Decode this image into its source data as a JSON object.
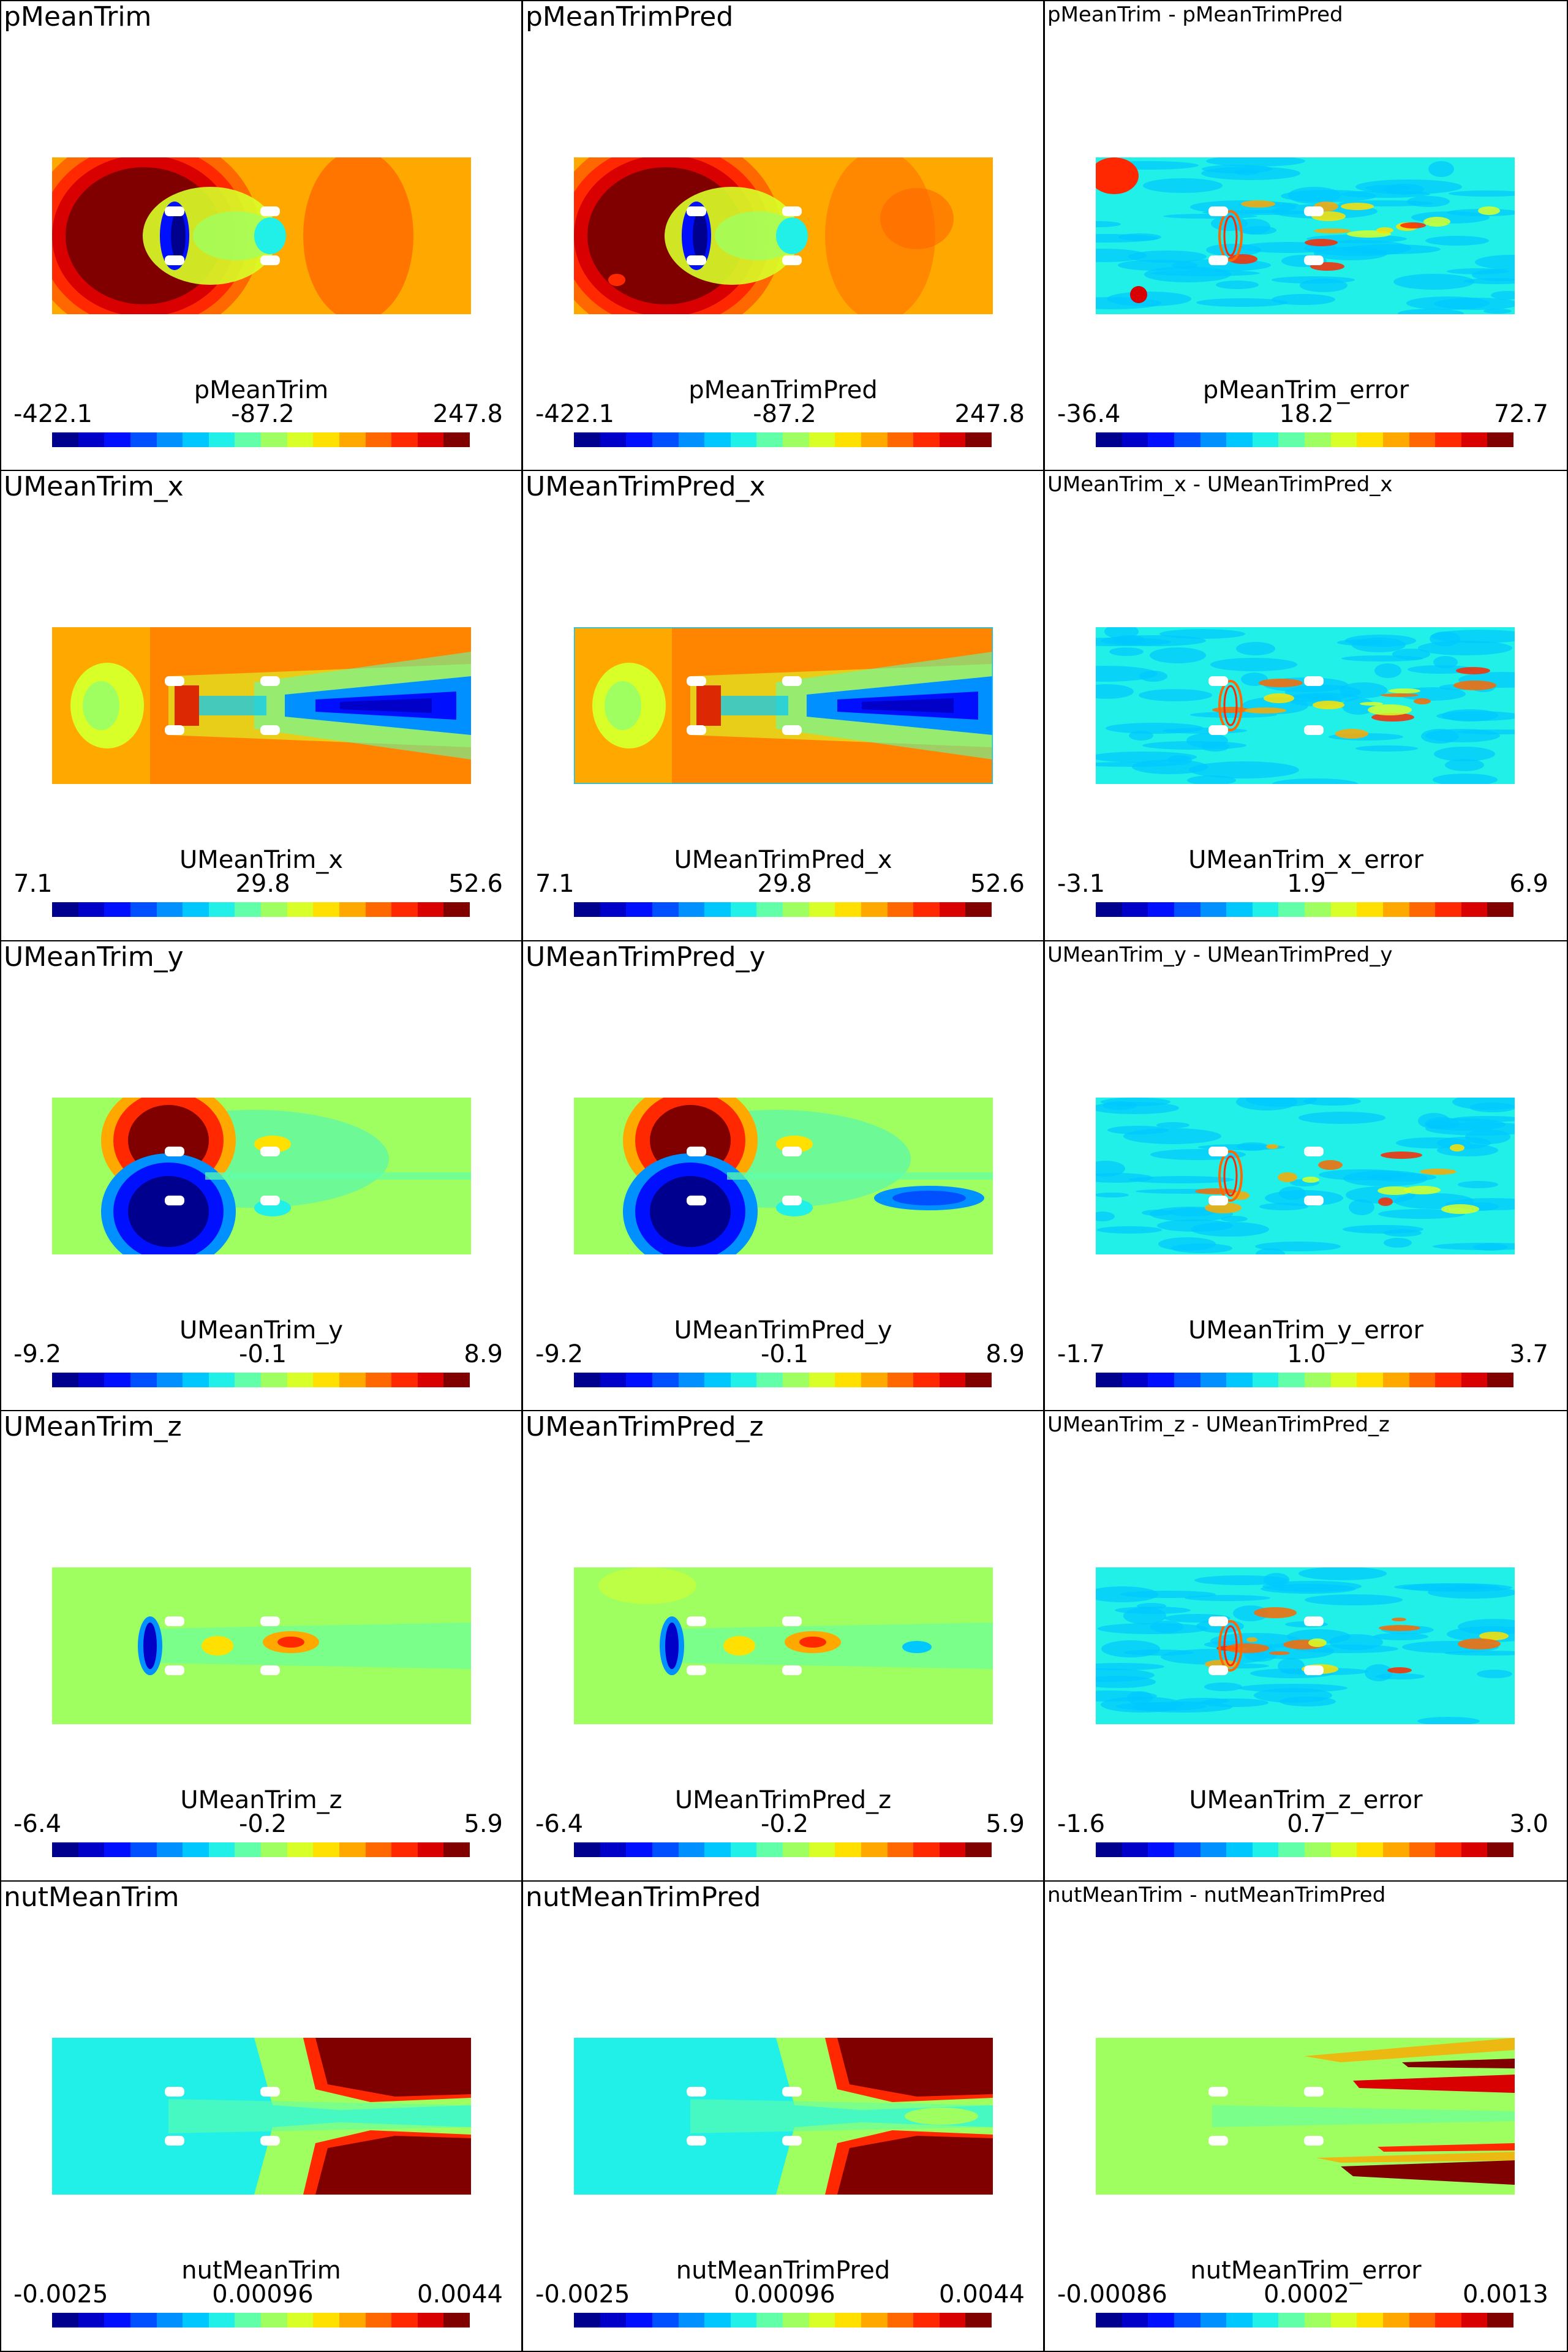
{
  "panels": [
    {
      "title": "pMeanTrim",
      "bar_title": "pMeanTrim",
      "min": "-422.1",
      "mid": "-87.2",
      "max": "247.8",
      "kind": "pressure",
      "pred": false
    },
    {
      "title": "pMeanTrimPred",
      "bar_title": "pMeanTrimPred",
      "min": "-422.1",
      "mid": "-87.2",
      "max": "247.8",
      "kind": "pressure",
      "pred": true
    },
    {
      "title": "pMeanTrim - pMeanTrimPred",
      "bar_title": "pMeanTrim_error",
      "min": "-36.4",
      "mid": "18.2",
      "max": "72.7",
      "kind": "error",
      "pred": false
    },
    {
      "title": "UMeanTrim_x",
      "bar_title": "UMeanTrim_x",
      "min": "7.1",
      "mid": "29.8",
      "max": "52.6",
      "kind": "ux",
      "pred": false
    },
    {
      "title": "UMeanTrimPred_x",
      "bar_title": "UMeanTrimPred_x",
      "min": "7.1",
      "mid": "29.8",
      "max": "52.6",
      "kind": "ux",
      "pred": true
    },
    {
      "title": "UMeanTrim_x - UMeanTrimPred_x",
      "bar_title": "UMeanTrim_x_error",
      "min": "-3.1",
      "mid": "1.9",
      "max": "6.9",
      "kind": "error",
      "pred": false
    },
    {
      "title": "UMeanTrim_y",
      "bar_title": "UMeanTrim_y",
      "min": "-9.2",
      "mid": "-0.1",
      "max": "8.9",
      "kind": "uy",
      "pred": false
    },
    {
      "title": "UMeanTrimPred_y",
      "bar_title": "UMeanTrimPred_y",
      "min": "-9.2",
      "mid": "-0.1",
      "max": "8.9",
      "kind": "uy",
      "pred": true
    },
    {
      "title": "UMeanTrim_y - UMeanTrimPred_y",
      "bar_title": "UMeanTrim_y_error",
      "min": "-1.7",
      "mid": "1.0",
      "max": "3.7",
      "kind": "error",
      "pred": false
    },
    {
      "title": "UMeanTrim_z",
      "bar_title": "UMeanTrim_z",
      "min": "-6.4",
      "mid": "-0.2",
      "max": "5.9",
      "kind": "uz",
      "pred": false
    },
    {
      "title": "UMeanTrimPred_z",
      "bar_title": "UMeanTrimPred_z",
      "min": "-6.4",
      "mid": "-0.2",
      "max": "5.9",
      "kind": "uz",
      "pred": true
    },
    {
      "title": "UMeanTrim_z - UMeanTrimPred_z",
      "bar_title": "UMeanTrim_z_error",
      "min": "-1.6",
      "mid": "0.7",
      "max": "3.0",
      "kind": "error",
      "pred": false
    },
    {
      "title": "nutMeanTrim",
      "bar_title": "nutMeanTrim",
      "min": "-0.0025",
      "mid": "0.00096",
      "max": "0.0044",
      "kind": "nut",
      "pred": false
    },
    {
      "title": "nutMeanTrimPred",
      "bar_title": "nutMeanTrimPred",
      "min": "-0.0025",
      "mid": "0.00096",
      "max": "0.0044",
      "kind": "nut",
      "pred": true
    },
    {
      "title": "nutMeanTrim - nutMeanTrimPred",
      "bar_title": "nutMeanTrim_error",
      "min": "-0.00086",
      "mid": "0.0002",
      "max": "0.0013",
      "kind": "nut_error",
      "pred": false
    }
  ],
  "colormap": [
    "#00008f",
    "#0000c8",
    "#0010ff",
    "#0050ff",
    "#0090ff",
    "#00c8ff",
    "#20f0e8",
    "#60ffa8",
    "#a0ff60",
    "#d8ff28",
    "#ffe000",
    "#ffa800",
    "#ff6800",
    "#ff2800",
    "#d80000",
    "#800000"
  ]
}
